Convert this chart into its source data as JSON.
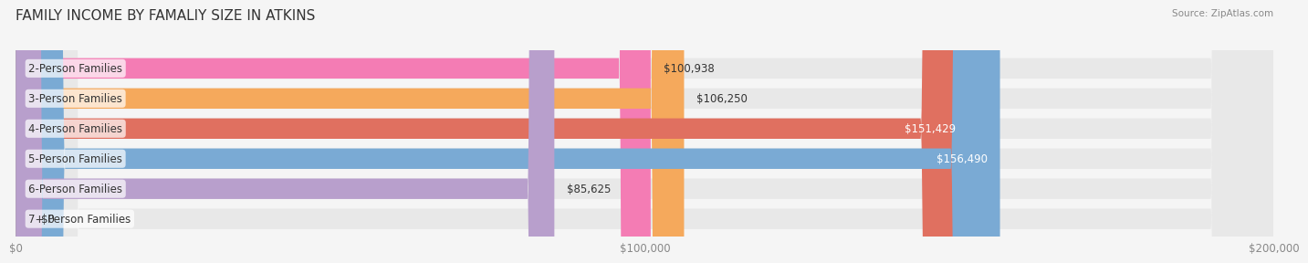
{
  "title": "FAMILY INCOME BY FAMALIY SIZE IN ATKINS",
  "source": "Source: ZipAtlas.com",
  "categories": [
    "2-Person Families",
    "3-Person Families",
    "4-Person Families",
    "5-Person Families",
    "6-Person Families",
    "7+ Person Families"
  ],
  "values": [
    100938,
    106250,
    151429,
    156490,
    85625,
    0
  ],
  "bar_colors": [
    "#f47cb4",
    "#f5a95c",
    "#e07060",
    "#7aaad4",
    "#b89fcc",
    "#7dd0cc"
  ],
  "label_colors": [
    "#555555",
    "#555555",
    "#ffffff",
    "#ffffff",
    "#555555",
    "#555555"
  ],
  "xlim": [
    0,
    200000
  ],
  "xticks": [
    0,
    100000,
    200000
  ],
  "xtick_labels": [
    "$0",
    "$100,000",
    "$200,000"
  ],
  "value_labels": [
    "$100,938",
    "$106,250",
    "$151,429",
    "$156,490",
    "$85,625",
    "$0"
  ],
  "background_color": "#f5f5f5",
  "bar_bg_color": "#e8e8e8",
  "title_fontsize": 11,
  "label_fontsize": 8.5,
  "value_fontsize": 8.5,
  "tick_fontsize": 8.5
}
